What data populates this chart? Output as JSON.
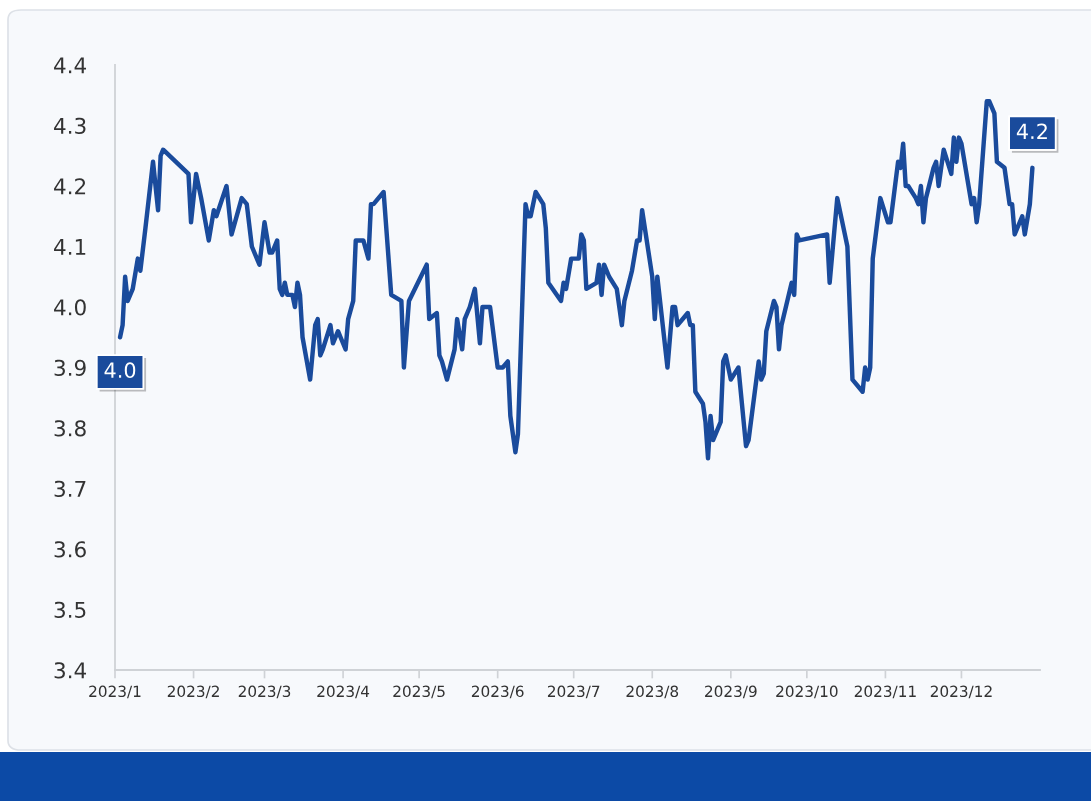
{
  "chart_data": {
    "type": "line",
    "x": [
      "2023-01-03",
      "2023-01-04",
      "2023-01-05",
      "2023-01-06",
      "2023-01-08",
      "2023-01-10",
      "2023-01-11",
      "2023-01-13",
      "2023-01-16",
      "2023-01-18",
      "2023-01-19",
      "2023-01-20",
      "2023-01-30",
      "2023-01-31",
      "2023-02-02",
      "2023-02-04",
      "2023-02-07",
      "2023-02-09",
      "2023-02-10",
      "2023-02-14",
      "2023-02-16",
      "2023-02-20",
      "2023-02-22",
      "2023-02-24",
      "2023-02-27",
      "2023-03-01",
      "2023-03-03",
      "2023-03-04",
      "2023-03-06",
      "2023-03-07",
      "2023-03-08",
      "2023-03-09",
      "2023-03-10",
      "2023-03-12",
      "2023-03-13",
      "2023-03-14",
      "2023-03-15",
      "2023-03-16",
      "2023-03-19",
      "2023-03-21",
      "2023-03-22",
      "2023-03-23",
      "2023-03-24",
      "2023-03-27",
      "2023-03-28",
      "2023-03-30",
      "2023-03-31",
      "2023-04-02",
      "2023-04-03",
      "2023-04-05",
      "2023-04-06",
      "2023-04-09",
      "2023-04-11",
      "2023-04-12",
      "2023-04-13",
      "2023-04-17",
      "2023-04-20",
      "2023-04-24",
      "2023-04-25",
      "2023-04-27",
      "2023-05-04",
      "2023-05-05",
      "2023-05-08",
      "2023-05-09",
      "2023-05-10",
      "2023-05-12",
      "2023-05-15",
      "2023-05-16",
      "2023-05-18",
      "2023-05-19",
      "2023-05-21",
      "2023-05-23",
      "2023-05-25",
      "2023-05-26",
      "2023-05-29",
      "2023-06-01",
      "2023-06-03",
      "2023-06-05",
      "2023-06-06",
      "2023-06-08",
      "2023-06-09",
      "2023-06-12",
      "2023-06-13",
      "2023-06-14",
      "2023-06-16",
      "2023-06-19",
      "2023-06-20",
      "2023-06-21",
      "2023-06-26",
      "2023-06-27",
      "2023-06-28",
      "2023-06-30",
      "2023-07-03",
      "2023-07-04",
      "2023-07-05",
      "2023-07-06",
      "2023-07-10",
      "2023-07-11",
      "2023-07-12",
      "2023-07-13",
      "2023-07-15",
      "2023-07-18",
      "2023-07-20",
      "2023-07-21",
      "2023-07-24",
      "2023-07-26",
      "2023-07-27",
      "2023-07-28",
      "2023-08-01",
      "2023-08-02",
      "2023-08-03",
      "2023-08-07",
      "2023-08-09",
      "2023-08-10",
      "2023-08-11",
      "2023-08-15",
      "2023-08-16",
      "2023-08-17",
      "2023-08-18",
      "2023-08-21",
      "2023-08-22",
      "2023-08-23",
      "2023-08-24",
      "2023-08-25",
      "2023-08-28",
      "2023-08-29",
      "2023-08-30",
      "2023-09-01",
      "2023-09-04",
      "2023-09-07",
      "2023-09-08",
      "2023-09-12",
      "2023-09-13",
      "2023-09-14",
      "2023-09-15",
      "2023-09-18",
      "2023-09-19",
      "2023-09-20",
      "2023-09-21",
      "2023-09-25",
      "2023-09-26",
      "2023-09-27",
      "2023-09-28",
      "2023-10-09",
      "2023-10-10",
      "2023-10-13",
      "2023-10-16",
      "2023-10-17",
      "2023-10-19",
      "2023-10-23",
      "2023-10-24",
      "2023-10-25",
      "2023-10-26",
      "2023-10-27",
      "2023-10-30",
      "2023-11-02",
      "2023-11-03",
      "2023-11-06",
      "2023-11-07",
      "2023-11-08",
      "2023-11-09",
      "2023-11-10",
      "2023-11-13",
      "2023-11-14",
      "2023-11-15",
      "2023-11-16",
      "2023-11-17",
      "2023-11-20",
      "2023-11-21",
      "2023-11-22",
      "2023-11-24",
      "2023-11-27",
      "2023-11-28",
      "2023-11-29",
      "2023-11-30",
      "2023-12-01",
      "2023-12-05",
      "2023-12-06",
      "2023-12-07",
      "2023-12-08",
      "2023-12-11",
      "2023-12-12",
      "2023-12-13",
      "2023-12-14",
      "2023-12-15",
      "2023-12-18",
      "2023-12-20",
      "2023-12-21",
      "2023-12-22",
      "2023-12-25",
      "2023-12-26",
      "2023-12-28",
      "2023-12-29"
    ],
    "series": [
      {
        "color": "#1a4b9c",
        "values": [
          3.95,
          3.97,
          4.05,
          4.01,
          4.03,
          4.08,
          4.06,
          4.13,
          4.24,
          4.16,
          4.25,
          4.26,
          4.22,
          4.14,
          4.22,
          4.18,
          4.11,
          4.16,
          4.15,
          4.2,
          4.12,
          4.18,
          4.17,
          4.1,
          4.07,
          4.14,
          4.09,
          4.09,
          4.11,
          4.03,
          4.02,
          4.04,
          4.02,
          4.02,
          4.0,
          4.04,
          4.02,
          3.95,
          3.88,
          3.97,
          3.98,
          3.92,
          3.93,
          3.97,
          3.94,
          3.96,
          3.95,
          3.93,
          3.98,
          4.01,
          4.11,
          4.11,
          4.08,
          4.17,
          4.17,
          4.19,
          4.02,
          4.01,
          3.9,
          4.01,
          4.07,
          3.98,
          3.99,
          3.92,
          3.91,
          3.88,
          3.93,
          3.98,
          3.93,
          3.98,
          4.0,
          4.03,
          3.94,
          4.0,
          4.0,
          3.9,
          3.9,
          3.91,
          3.82,
          3.76,
          3.79,
          4.17,
          4.15,
          4.15,
          4.19,
          4.17,
          4.13,
          4.04,
          4.01,
          4.04,
          4.03,
          4.08,
          4.08,
          4.12,
          4.11,
          4.03,
          4.04,
          4.07,
          4.02,
          4.07,
          4.05,
          4.03,
          3.97,
          4.01,
          4.06,
          4.11,
          4.11,
          4.16,
          4.05,
          3.98,
          4.05,
          3.9,
          4.0,
          4.0,
          3.97,
          3.99,
          3.97,
          3.97,
          3.86,
          3.84,
          3.81,
          3.75,
          3.82,
          3.78,
          3.81,
          3.91,
          3.92,
          3.88,
          3.9,
          3.77,
          3.78,
          3.91,
          3.88,
          3.89,
          3.96,
          4.01,
          4.0,
          3.93,
          3.97,
          4.04,
          4.02,
          4.12,
          4.11,
          4.12,
          4.04,
          4.18,
          4.12,
          4.1,
          3.88,
          3.86,
          3.9,
          3.88,
          3.9,
          4.08,
          4.18,
          4.14,
          4.14,
          4.24,
          4.23,
          4.27,
          4.2,
          4.2,
          4.18,
          4.17,
          4.2,
          4.14,
          4.18,
          4.23,
          4.24,
          4.2,
          4.26,
          4.22,
          4.28,
          4.24,
          4.28,
          4.27,
          4.17,
          4.18,
          4.14,
          4.17,
          4.34,
          4.34,
          4.33,
          4.32,
          4.24,
          4.23,
          4.17,
          4.17,
          4.12,
          4.15,
          4.12,
          4.17,
          4.23
        ],
        "value_labels": [
          "4.0",
          null,
          null,
          null,
          null,
          null,
          null,
          null,
          null,
          null,
          null,
          null,
          null,
          null,
          null,
          null,
          null,
          null,
          null,
          null,
          null,
          null,
          null,
          null,
          null,
          null,
          null,
          null,
          null,
          null,
          null,
          null,
          null,
          null,
          null,
          null,
          null,
          null,
          null,
          null,
          null,
          null,
          null,
          null,
          null,
          null,
          null,
          null,
          null,
          null,
          null,
          null,
          null,
          null,
          null,
          null,
          null,
          null,
          null,
          null,
          null,
          null,
          null,
          null,
          null,
          null,
          null,
          null,
          null,
          null,
          null,
          null,
          null,
          null,
          null,
          null,
          null,
          null,
          null,
          null,
          null,
          null,
          null,
          null,
          null,
          null,
          null,
          null,
          null,
          null,
          null,
          null,
          null,
          null,
          null,
          null,
          null,
          null,
          null,
          null,
          null,
          null,
          null,
          null,
          null,
          null,
          null,
          null,
          null,
          null,
          null,
          null,
          null,
          null,
          null,
          null,
          null,
          null,
          null,
          null,
          null,
          null,
          null,
          null,
          null,
          null,
          null,
          null,
          null,
          null,
          null,
          null,
          null,
          null,
          null,
          null,
          null,
          null,
          null,
          null,
          null,
          null,
          null,
          null,
          null,
          null,
          null,
          null,
          null,
          null,
          null,
          null,
          null,
          null,
          null,
          null,
          null,
          null,
          null,
          null,
          null,
          null,
          null,
          null,
          null,
          null,
          null,
          null,
          null,
          null,
          null,
          null,
          null,
          null,
          null,
          null,
          null,
          null,
          null,
          null,
          null,
          null,
          null,
          null,
          null,
          null,
          null,
          null,
          null,
          null,
          null,
          null,
          "4.2"
        ]
      }
    ],
    "xlim": [
      "2023-01-01",
      "2024-01-01"
    ],
    "xticks": [
      {
        "value": "2023-01-01",
        "label": "2023/1"
      },
      {
        "value": "2023-02-01",
        "label": "2023/2"
      },
      {
        "value": "2023-03-01",
        "label": "2023/3"
      },
      {
        "value": "2023-04-01",
        "label": "2023/4"
      },
      {
        "value": "2023-05-01",
        "label": "2023/5"
      },
      {
        "value": "2023-06-01",
        "label": "2023/6"
      },
      {
        "value": "2023-07-01",
        "label": "2023/7"
      },
      {
        "value": "2023-08-01",
        "label": "2023/8"
      },
      {
        "value": "2023-09-01",
        "label": "2023/9"
      },
      {
        "value": "2023-10-01",
        "label": "2023/10"
      },
      {
        "value": "2023-11-01",
        "label": "2023/11"
      },
      {
        "value": "2023-12-01",
        "label": "2023/12"
      }
    ],
    "ylim": [
      3.4,
      4.4
    ],
    "yticks": [
      3.4,
      3.5,
      3.6,
      3.7,
      3.8,
      3.9,
      {
        "value": 4,
        "label": "4.0"
      },
      4.1,
      4.2,
      4.3,
      4.4
    ],
    "line_style": "solid"
  }
}
